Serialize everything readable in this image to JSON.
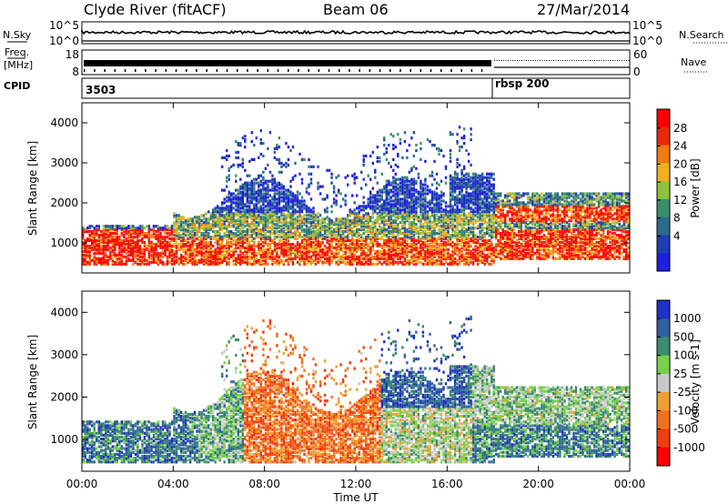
{
  "header": {
    "station": "Clyde River (fitACF)",
    "beam": "Beam 06",
    "date": "27/Mar/2014"
  },
  "params": {
    "nsky_label": "N.Sky",
    "nsearch_label": "N.Search",
    "freq_label_1": "Freq.",
    "freq_label_2": "[MHz]",
    "nave_label": "Nave",
    "cpid_label": "CPID",
    "nsky_ticks": [
      "10^5",
      "10^0"
    ],
    "nsearch_ticks": [
      "10^5",
      "10^0"
    ],
    "freq_ticks": [
      "18",
      "8"
    ],
    "nave_ticks": [
      "60",
      "0"
    ],
    "cpid_segments": [
      {
        "label": "3503",
        "start_hour": 0
      },
      {
        "label": "rbsp 200",
        "start_hour": 18
      }
    ]
  },
  "chart_data": [
    {
      "type": "heatmap",
      "name": "power",
      "xlabel": "",
      "ylabel": "Slant Range [km]",
      "x_range_hours": [
        0,
        24
      ],
      "ylim": [
        250,
        4500
      ],
      "yticks": [
        "1000",
        "2000",
        "3000",
        "4000"
      ],
      "colorbar": {
        "label": "Power [dB]",
        "ticks": [
          "4",
          "8",
          "12",
          "16",
          "20",
          "24",
          "28"
        ],
        "colors": [
          "#1f1fe0",
          "#1f3fb0",
          "#2c6b8c",
          "#3a8f6a",
          "#8fc23a",
          "#f0b020",
          "#f07a10",
          "#e82a0a",
          "#ff0000"
        ]
      }
    },
    {
      "type": "heatmap",
      "name": "velocity",
      "xlabel": "Time UT",
      "ylabel": "Slant Range [km]",
      "x_range_hours": [
        0,
        24
      ],
      "ylim": [
        250,
        4500
      ],
      "yticks": [
        "1000",
        "2000",
        "3000",
        "4000"
      ],
      "xticks": [
        "00:00",
        "04:00",
        "08:00",
        "12:00",
        "16:00",
        "20:00",
        "00:00"
      ],
      "colorbar": {
        "label": "Velocity [m s-1]",
        "ticks": [
          "1000",
          "500",
          "100",
          "25",
          "-25",
          "-100",
          "-500",
          "-1000"
        ],
        "colors": [
          "#2030c0",
          "#3060a0",
          "#3c8a70",
          "#78d048",
          "#c8c8c8",
          "#f0a030",
          "#f07020",
          "#f03c10",
          "#ff0000"
        ]
      }
    }
  ]
}
